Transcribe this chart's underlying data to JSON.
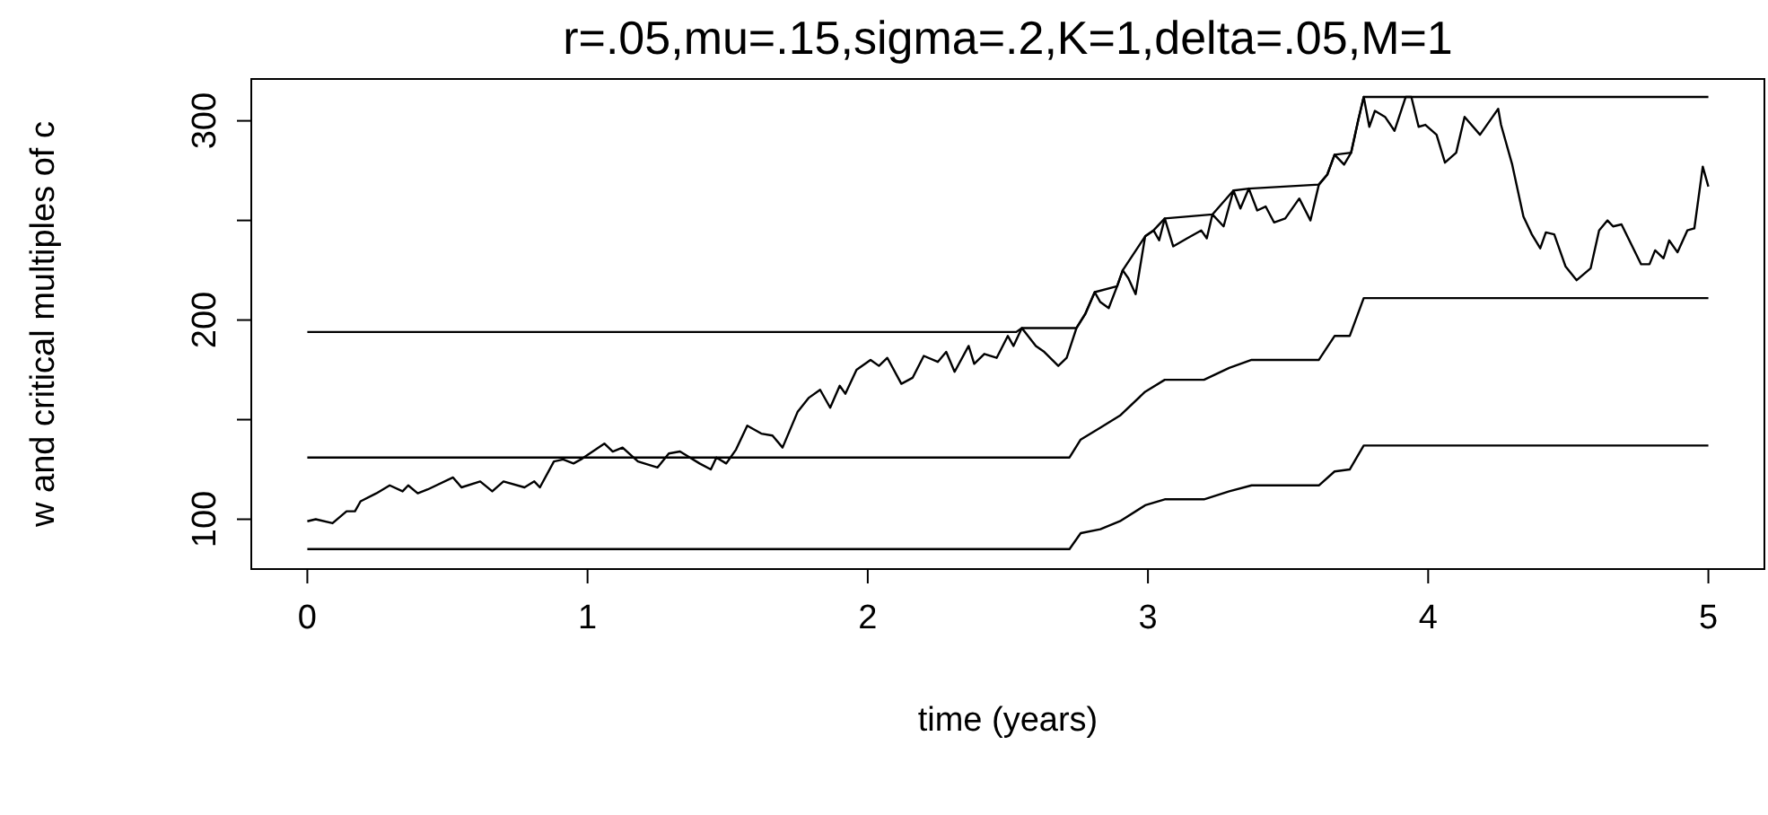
{
  "chart_data": {
    "type": "line",
    "title": "r=.05,mu=.15,sigma=.2,K=1,delta=.05,M=1",
    "xlabel": "time (years)",
    "ylabel": "w and critical multiples of c",
    "xlim": [
      -0.2,
      5.2
    ],
    "xticks": [
      0,
      1,
      2,
      3,
      4,
      5
    ],
    "ylim": [
      75,
      321
    ],
    "yticks": [
      100,
      {
        "value": 150,
        "label": null
      },
      200,
      {
        "value": 250,
        "label": null
      },
      300
    ],
    "line_style": "solid",
    "marker": "none",
    "series": [
      {
        "color": "#000000",
        "x": [
          0,
          0.03,
          0.09,
          0.14,
          0.17,
          0.19,
          0.246,
          0.294,
          0.34,
          0.36,
          0.394,
          0.43,
          0.52,
          0.55,
          0.617,
          0.66,
          0.7,
          0.775,
          0.81,
          0.83,
          0.88,
          0.913,
          0.95,
          0.976,
          1.06,
          1.09,
          1.125,
          1.18,
          1.25,
          1.29,
          1.33,
          1.4,
          1.44,
          1.46,
          1.495,
          1.53,
          1.57,
          1.62,
          1.66,
          1.696,
          1.75,
          1.79,
          1.83,
          1.866,
          1.9,
          1.92,
          1.96,
          2.01,
          2.04,
          2.07,
          2.12,
          2.16,
          2.2,
          2.25,
          2.28,
          2.31,
          2.36,
          2.38,
          2.416,
          2.46,
          2.5,
          2.52,
          2.55,
          2.6,
          2.63,
          2.68,
          2.71,
          2.745,
          2.776,
          2.81,
          2.83,
          2.86,
          2.89,
          2.91,
          2.93,
          2.956,
          2.99,
          3.02,
          3.04,
          3.06,
          3.09,
          3.14,
          3.19,
          3.21,
          3.23,
          3.27,
          3.305,
          3.33,
          3.36,
          3.39,
          3.42,
          3.45,
          3.49,
          3.54,
          3.58,
          3.61,
          3.64,
          3.666,
          3.7,
          3.725,
          3.75,
          3.77,
          3.79,
          3.81,
          3.846,
          3.88,
          3.92,
          3.94,
          3.966,
          3.99,
          4.03,
          4.06,
          4.1,
          4.13,
          4.185,
          4.23,
          4.25,
          4.26,
          4.3,
          4.34,
          4.37,
          4.4,
          4.42,
          4.45,
          4.49,
          4.53,
          4.58,
          4.61,
          4.64,
          4.66,
          4.69,
          4.76,
          4.79,
          4.81,
          4.84,
          4.86,
          4.89,
          4.925,
          4.95,
          4.98,
          5
        ],
        "values": [
          99,
          100,
          98,
          104,
          104,
          109,
          113,
          117,
          114,
          117,
          113,
          115,
          121,
          116,
          119,
          114,
          119,
          116,
          119,
          116,
          129,
          130,
          128,
          130,
          138,
          134,
          136,
          129,
          126,
          133,
          134,
          128,
          125,
          131,
          128,
          135,
          147,
          143,
          142,
          136,
          154,
          161,
          165,
          156,
          167,
          163,
          175,
          180,
          177,
          181,
          168,
          171,
          182,
          179,
          184,
          174,
          187,
          178,
          183,
          181,
          192,
          187,
          196,
          187,
          184,
          177,
          181,
          196,
          203,
          214,
          209,
          206,
          217,
          225,
          221,
          213,
          242,
          245,
          240,
          251,
          237,
          241,
          245,
          241,
          253,
          247,
          265,
          256,
          266,
          255,
          257,
          249,
          251,
          261,
          250,
          268,
          273,
          283,
          278,
          284,
          300,
          312,
          297,
          305,
          302,
          295,
          312,
          312,
          297,
          298,
          293,
          279,
          284,
          302,
          293,
          302,
          306,
          298,
          278,
          252,
          243,
          236,
          244,
          243,
          227,
          220,
          226,
          245,
          250,
          247,
          248,
          228,
          228,
          235,
          231,
          240,
          234,
          245,
          246,
          277,
          267
        ]
      },
      {
        "color": "#000000",
        "x": [
          0,
          2.53,
          2.55,
          2.745,
          2.776,
          2.81,
          2.89,
          2.91,
          2.99,
          3.02,
          3.06,
          3.23,
          3.305,
          3.36,
          3.61,
          3.64,
          3.666,
          3.725,
          3.75,
          3.77,
          5
        ],
        "values": [
          194,
          194,
          196,
          196,
          203,
          214,
          217,
          225,
          242,
          245,
          251,
          253,
          265,
          266,
          268,
          273,
          283,
          284,
          300,
          312,
          312
        ]
      },
      {
        "color": "#000000",
        "x": [
          0,
          2.72,
          2.76,
          2.83,
          2.9,
          2.99,
          3.06,
          3.2,
          3.29,
          3.37,
          3.61,
          3.666,
          3.72,
          3.77,
          5
        ],
        "values": [
          131,
          131,
          140,
          146,
          152,
          164,
          170,
          170,
          176,
          180,
          180,
          192,
          192,
          211,
          211
        ]
      },
      {
        "color": "#000000",
        "x": [
          0,
          2.72,
          2.76,
          2.83,
          2.9,
          2.99,
          3.06,
          3.2,
          3.29,
          3.37,
          3.61,
          3.666,
          3.72,
          3.77,
          5
        ],
        "values": [
          85,
          85,
          93,
          95,
          99,
          107,
          110,
          110,
          114,
          117,
          117,
          124,
          125,
          137,
          137
        ]
      }
    ]
  }
}
